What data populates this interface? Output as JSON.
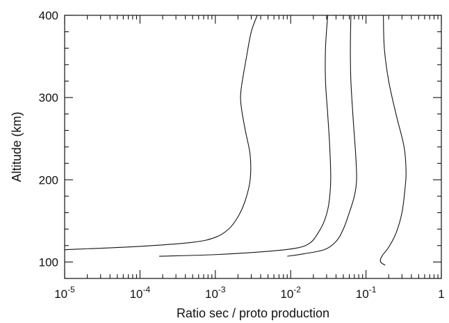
{
  "chart_data": {
    "type": "line",
    "title": "",
    "xlabel": "Ratio sec / proto production",
    "ylabel": "Altitude (km)",
    "xscale": "log",
    "xlim": [
      1e-05,
      1
    ],
    "ylim": [
      80,
      400
    ],
    "grid": false,
    "x_ticks": [
      {
        "value": 1e-05,
        "base": "10",
        "exp": "-5"
      },
      {
        "value": 0.0001,
        "base": "10",
        "exp": "-4"
      },
      {
        "value": 0.001,
        "base": "10",
        "exp": "-3"
      },
      {
        "value": 0.01,
        "base": "10",
        "exp": "-2"
      },
      {
        "value": 0.1,
        "base": "10",
        "exp": "-1"
      },
      {
        "value": 1,
        "base": "1",
        "exp": ""
      }
    ],
    "y_ticks": [
      {
        "value": 100,
        "label": "100"
      },
      {
        "value": 200,
        "label": "200"
      },
      {
        "value": 300,
        "label": "300"
      },
      {
        "value": 400,
        "label": "400"
      }
    ],
    "series": [
      {
        "points": [
          [
            1e-05,
            115
          ],
          [
            0.0001,
            119
          ],
          [
            0.0005,
            124
          ],
          [
            0.001,
            130
          ],
          [
            0.0015,
            140
          ],
          [
            0.002,
            155
          ],
          [
            0.0025,
            175
          ],
          [
            0.0029,
            200
          ],
          [
            0.0029,
            230
          ],
          [
            0.0025,
            260
          ],
          [
            0.0022,
            290
          ],
          [
            0.0022,
            310
          ],
          [
            0.0026,
            350
          ],
          [
            0.003,
            380
          ],
          [
            0.0036,
            400
          ]
        ]
      },
      {
        "points": [
          [
            0.00018,
            107
          ],
          [
            0.001,
            109
          ],
          [
            0.005,
            113
          ],
          [
            0.012,
            117
          ],
          [
            0.018,
            123
          ],
          [
            0.023,
            135
          ],
          [
            0.028,
            150
          ],
          [
            0.032,
            170
          ],
          [
            0.034,
            200
          ],
          [
            0.033,
            240
          ],
          [
            0.031,
            280
          ],
          [
            0.029,
            320
          ],
          [
            0.029,
            360
          ],
          [
            0.031,
            400
          ]
        ]
      },
      {
        "points": [
          [
            0.009,
            107
          ],
          [
            0.015,
            110
          ],
          [
            0.028,
            115
          ],
          [
            0.04,
            125
          ],
          [
            0.05,
            140
          ],
          [
            0.06,
            160
          ],
          [
            0.07,
            180
          ],
          [
            0.075,
            200
          ],
          [
            0.073,
            230
          ],
          [
            0.068,
            270
          ],
          [
            0.063,
            320
          ],
          [
            0.062,
            360
          ],
          [
            0.063,
            400
          ]
        ]
      },
      {
        "points": [
          [
            0.18,
            96
          ],
          [
            0.16,
            99
          ],
          [
            0.155,
            102
          ],
          [
            0.165,
            108
          ],
          [
            0.2,
            118
          ],
          [
            0.25,
            135
          ],
          [
            0.3,
            160
          ],
          [
            0.33,
            190
          ],
          [
            0.34,
            210
          ],
          [
            0.32,
            240
          ],
          [
            0.25,
            280
          ],
          [
            0.2,
            320
          ],
          [
            0.175,
            360
          ],
          [
            0.17,
            400
          ]
        ]
      }
    ]
  }
}
